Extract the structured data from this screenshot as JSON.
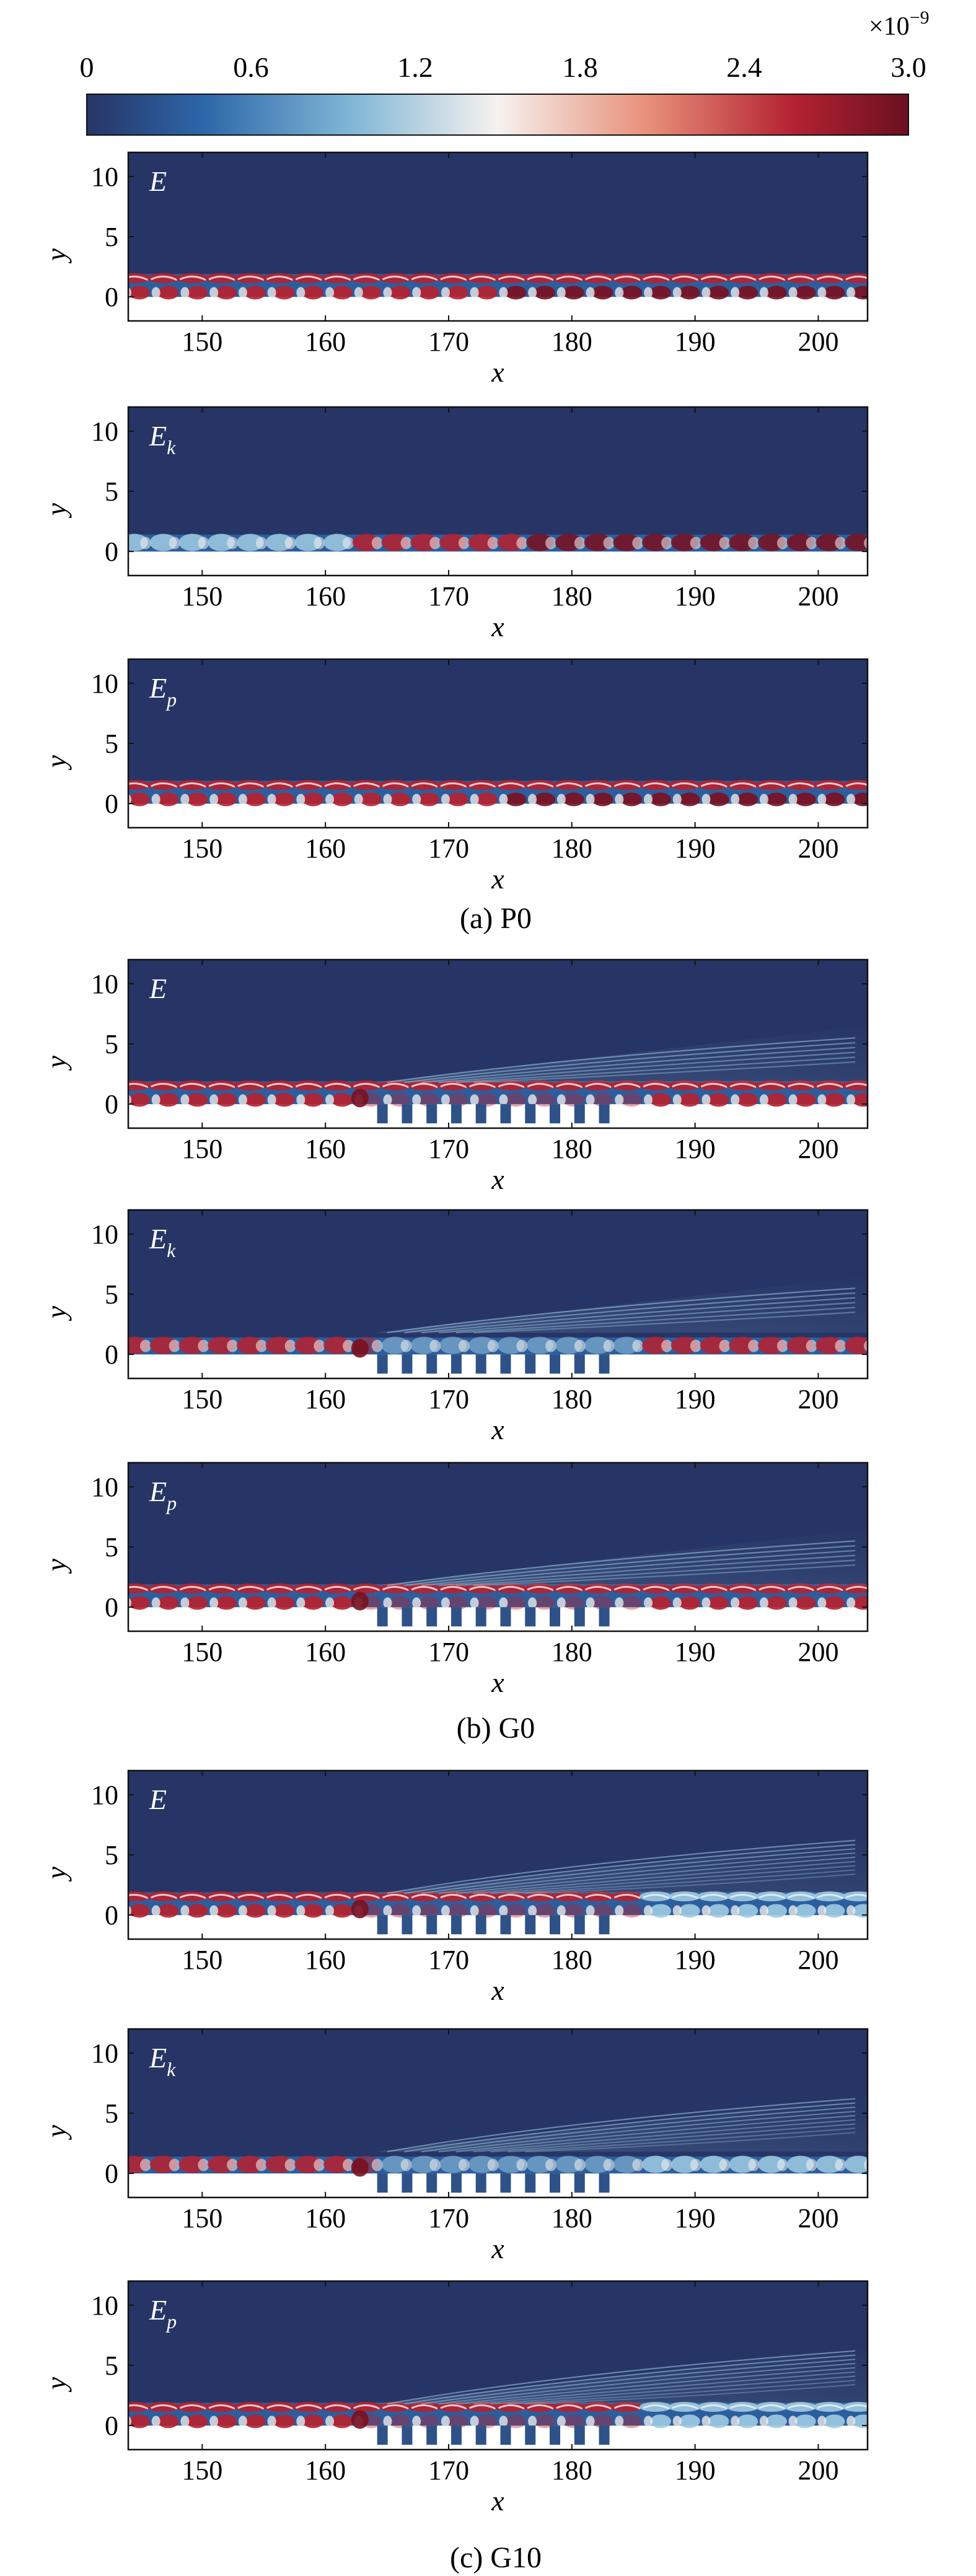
{
  "colorbar": {
    "ticks": [
      "0",
      "0.6",
      "1.2",
      "1.8",
      "2.4",
      "3.0"
    ],
    "multiplier": "×10",
    "exponent": "−9",
    "colors": [
      "#263566",
      "#2c66a8",
      "#7fb6d6",
      "#f6f2ee",
      "#e8917a",
      "#b42232",
      "#6a1020"
    ]
  },
  "axes": {
    "xlabel": "x",
    "ylabel": "y",
    "xticks": [
      "150",
      "160",
      "170",
      "180",
      "190",
      "200"
    ],
    "yticks": [
      "0",
      "5",
      "10"
    ]
  },
  "groups": [
    {
      "caption": "(a) P0",
      "case": "P0"
    },
    {
      "caption": "(b) G0",
      "case": "G0"
    },
    {
      "caption": "(c) G10",
      "case": "G10"
    }
  ],
  "panel_labels": {
    "E": {
      "base": "E",
      "sub": ""
    },
    "Ek": {
      "base": "E",
      "sub": "k"
    },
    "Ep": {
      "base": "E",
      "sub": "p"
    }
  },
  "colors": {
    "background_field": "#263566",
    "deep_blue": "#2c5e9e",
    "light_blue": "#9fcbe2",
    "white": "#f6f3ef",
    "red": "#b8202e",
    "dark_red": "#7a0f1f",
    "grating_block": "#2e5288"
  }
}
